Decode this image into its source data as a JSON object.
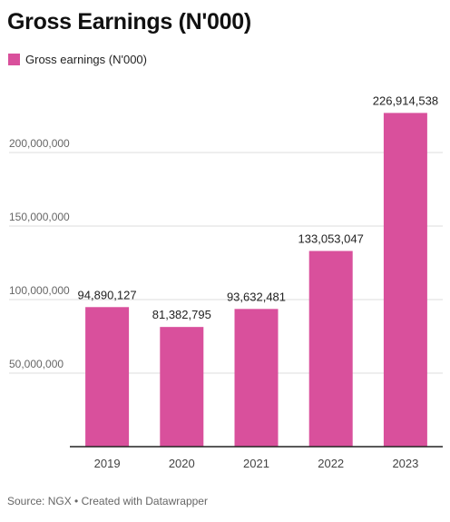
{
  "title": "Gross Earnings (N'000)",
  "legend": [
    {
      "label": "Gross earnings (N'000)",
      "color": "#d9509c"
    }
  ],
  "footer": "Source: NGX • Created with Datawrapper",
  "chart_data": {
    "type": "bar",
    "title": "Gross Earnings (N'000)",
    "categories": [
      "2019",
      "2020",
      "2021",
      "2022",
      "2023"
    ],
    "series": [
      {
        "name": "Gross earnings (N'000)",
        "values": [
          94890127,
          81382795,
          93632481,
          133053047,
          226914538
        ],
        "color": "#d9509c"
      }
    ],
    "data_labels": [
      "94,890,127",
      "81,382,795",
      "93,632,481",
      "133,053,047",
      "226,914,538"
    ],
    "y_ticks": [
      50000000,
      100000000,
      150000000,
      200000000
    ],
    "y_tick_labels": [
      "50,000,000",
      "100,000,000",
      "150,000,000",
      "200,000,000"
    ],
    "ylim": [
      0,
      240000000
    ],
    "xlabel": "",
    "ylabel": "",
    "grid": true,
    "legend_position": "top-left"
  }
}
